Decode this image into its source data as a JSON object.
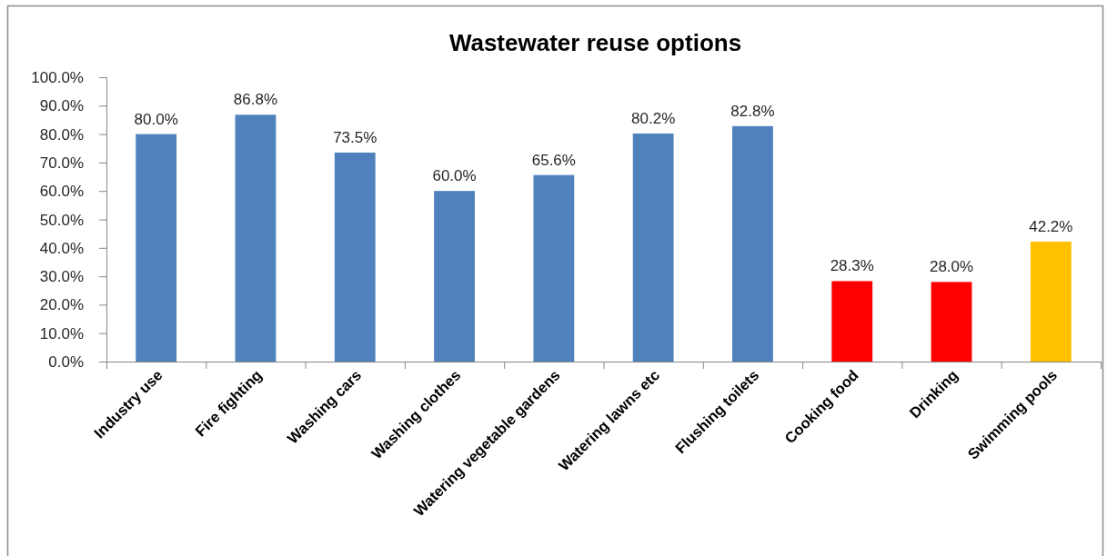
{
  "chart_data": {
    "type": "bar",
    "title": "Wastewater reuse options",
    "categories": [
      "Industry use",
      "Fire fighting",
      "Washing cars",
      "Washing clothes",
      "Watering vegetable gardens",
      "Watering lawns etc",
      "Flushing toilets",
      "Cooking food",
      "Drinking",
      "Swimming pools"
    ],
    "values": [
      80.0,
      86.8,
      73.5,
      60.0,
      65.6,
      80.2,
      82.8,
      28.3,
      28.0,
      42.2
    ],
    "colors": [
      "#4f81bd",
      "#4f81bd",
      "#4f81bd",
      "#4f81bd",
      "#4f81bd",
      "#4f81bd",
      "#4f81bd",
      "#ff0000",
      "#ff0000",
      "#ffc000"
    ],
    "value_labels": [
      "80.0%",
      "86.8%",
      "73.5%",
      "60.0%",
      "65.6%",
      "80.2%",
      "82.8%",
      "28.3%",
      "28.0%",
      "42.2%"
    ],
    "ylim": [
      0,
      100
    ],
    "yticks": [
      {
        "value": 0,
        "label": "0.0%"
      },
      {
        "value": 10,
        "label": "10.0%"
      },
      {
        "value": 20,
        "label": "20.0%"
      },
      {
        "value": 30,
        "label": "30.0%"
      },
      {
        "value": 40,
        "label": "40.0%"
      },
      {
        "value": 50,
        "label": "50.0%"
      },
      {
        "value": 60,
        "label": "60.0%"
      },
      {
        "value": 70,
        "label": "70.0%"
      },
      {
        "value": 80,
        "label": "80.0%"
      },
      {
        "value": 90,
        "label": "90.0%"
      },
      {
        "value": 100,
        "label": "100.0%"
      }
    ],
    "grid": false
  }
}
